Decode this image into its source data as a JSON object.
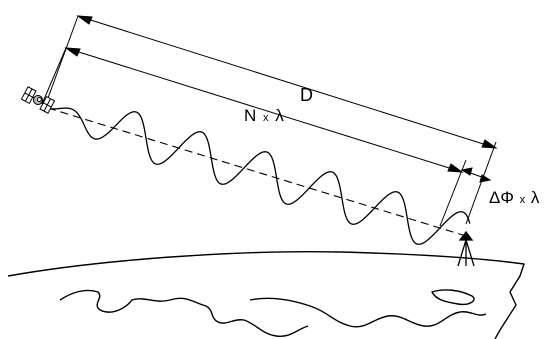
{
  "diagram": {
    "distance_label": "D",
    "cycles_label_main": "N",
    "cycles_label_times": "x",
    "cycles_label_wave": "λ",
    "phase_label_main": "ΔΦ",
    "phase_label_times": "x",
    "phase_label_wave": "λ",
    "satellite_icon": "satellite-icon",
    "receiver_icon": "surveying-tripod-icon",
    "colors": {
      "ink": "#000000",
      "background": "#ffffff"
    }
  }
}
